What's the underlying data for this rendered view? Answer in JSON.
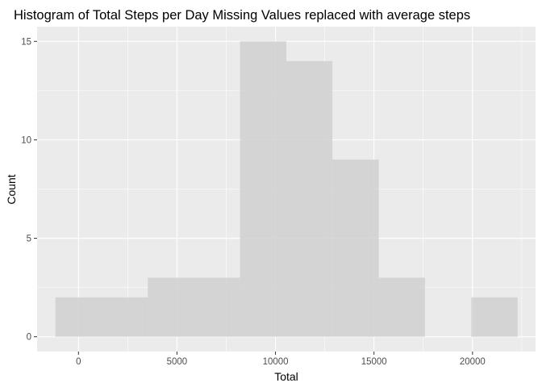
{
  "chart_data": {
    "type": "bar",
    "title": "Histogram of Total Steps per Day Missing Values replaced with average steps",
    "xlabel": "Total",
    "ylabel": "Count",
    "xlim": [
      -2100,
      23200
    ],
    "ylim": [
      -0.75,
      15.75
    ],
    "x_ticks": [
      0,
      5000,
      10000,
      15000,
      20000
    ],
    "x_tick_labels": [
      "0",
      "5000",
      "10000",
      "15000",
      "20000"
    ],
    "y_ticks": [
      0,
      5,
      10,
      15
    ],
    "y_tick_labels": [
      "0",
      "5",
      "10",
      "15"
    ],
    "bins": [
      {
        "x_start": -1170,
        "x_end": 3520,
        "count": 2
      },
      {
        "x_start": 3520,
        "x_end": 8200,
        "count": 3
      },
      {
        "x_start": 8200,
        "x_end": 10550,
        "count": 15
      },
      {
        "x_start": 10550,
        "x_end": 12890,
        "count": 14
      },
      {
        "x_start": 12890,
        "x_end": 15240,
        "count": 9
      },
      {
        "x_start": 15240,
        "x_end": 17590,
        "count": 3
      },
      {
        "x_start": 19940,
        "x_end": 22290,
        "count": 2
      }
    ],
    "grid": true,
    "colors": {
      "panel": "#ebebeb",
      "grid_major": "#ffffff",
      "bar_fill": "#d0d0d0",
      "tick_mark": "#333333"
    }
  }
}
